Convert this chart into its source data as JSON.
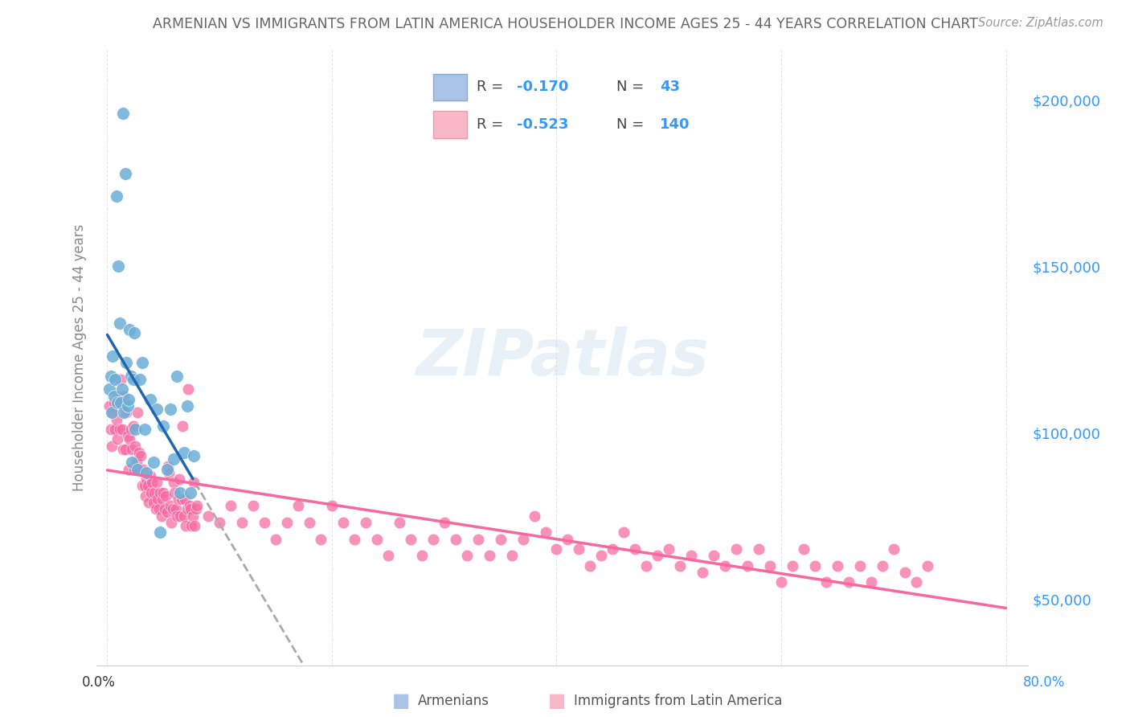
{
  "title": "ARMENIAN VS IMMIGRANTS FROM LATIN AMERICA HOUSEHOLDER INCOME AGES 25 - 44 YEARS CORRELATION CHART",
  "source": "Source: ZipAtlas.com",
  "ylabel": "Householder Income Ages 25 - 44 years",
  "y_ticks": [
    50000,
    100000,
    150000,
    200000
  ],
  "y_tick_labels": [
    "$50,000",
    "$100,000",
    "$150,000",
    "$200,000"
  ],
  "armenian_color": "#6baed6",
  "latin_color": "#f768a1",
  "blue_line_color": "#2166ac",
  "pink_line_color": "#f768a1",
  "dashed_line_color": "#aaaaaa",
  "legend_blue_swatch": "#aac4e8",
  "legend_pink_swatch": "#f9b8c8",
  "legend_text_dark": "#444444",
  "legend_text_blue": "#3399ff",
  "watermark": "ZIPatlas",
  "background_color": "#ffffff",
  "grid_color": "#cccccc",
  "title_color": "#666666",
  "r_armenian": "-0.170",
  "n_armenian": "43",
  "r_latin": "-0.523",
  "n_latin": "140",
  "armenian_scatter_x": [
    0.002,
    0.003,
    0.004,
    0.005,
    0.006,
    0.007,
    0.008,
    0.009,
    0.01,
    0.011,
    0.012,
    0.013,
    0.014,
    0.015,
    0.016,
    0.017,
    0.018,
    0.019,
    0.02,
    0.021,
    0.022,
    0.023,
    0.024,
    0.025,
    0.027,
    0.029,
    0.031,
    0.033,
    0.035,
    0.038,
    0.041,
    0.044,
    0.047,
    0.05,
    0.053,
    0.056,
    0.059,
    0.062,
    0.065,
    0.068,
    0.071,
    0.074,
    0.077
  ],
  "armenian_scatter_y": [
    113000,
    117000,
    106000,
    123000,
    111000,
    116000,
    171000,
    109000,
    150000,
    133000,
    109000,
    113000,
    196000,
    106000,
    178000,
    121000,
    108000,
    110000,
    131000,
    117000,
    91000,
    116000,
    130000,
    101000,
    89000,
    116000,
    121000,
    101000,
    88000,
    110000,
    91000,
    107000,
    70000,
    102000,
    89000,
    107000,
    92000,
    117000,
    82000,
    94000,
    108000,
    82000,
    93000
  ],
  "latin_scatter_x": [
    0.002,
    0.003,
    0.004,
    0.005,
    0.006,
    0.007,
    0.008,
    0.009,
    0.01,
    0.011,
    0.012,
    0.013,
    0.014,
    0.015,
    0.016,
    0.017,
    0.018,
    0.019,
    0.02,
    0.021,
    0.022,
    0.023,
    0.024,
    0.025,
    0.026,
    0.027,
    0.028,
    0.029,
    0.03,
    0.031,
    0.032,
    0.033,
    0.034,
    0.035,
    0.036,
    0.037,
    0.038,
    0.039,
    0.04,
    0.041,
    0.042,
    0.043,
    0.044,
    0.045,
    0.046,
    0.047,
    0.048,
    0.049,
    0.05,
    0.051,
    0.052,
    0.053,
    0.054,
    0.055,
    0.056,
    0.057,
    0.058,
    0.059,
    0.06,
    0.061,
    0.062,
    0.063,
    0.064,
    0.065,
    0.066,
    0.067,
    0.068,
    0.069,
    0.07,
    0.071,
    0.072,
    0.073,
    0.074,
    0.075,
    0.076,
    0.077,
    0.078,
    0.079,
    0.08,
    0.09,
    0.1,
    0.11,
    0.12,
    0.13,
    0.14,
    0.15,
    0.16,
    0.17,
    0.18,
    0.19,
    0.2,
    0.21,
    0.22,
    0.23,
    0.24,
    0.25,
    0.26,
    0.27,
    0.28,
    0.29,
    0.3,
    0.31,
    0.32,
    0.33,
    0.34,
    0.35,
    0.36,
    0.37,
    0.38,
    0.39,
    0.4,
    0.41,
    0.42,
    0.43,
    0.44,
    0.45,
    0.46,
    0.47,
    0.48,
    0.49,
    0.5,
    0.51,
    0.52,
    0.53,
    0.54,
    0.55,
    0.56,
    0.57,
    0.58,
    0.59,
    0.6,
    0.61,
    0.62,
    0.63,
    0.64,
    0.65,
    0.66,
    0.67,
    0.68,
    0.69,
    0.7,
    0.71,
    0.72,
    0.73
  ],
  "latin_scatter_y": [
    108000,
    101000,
    96000,
    106000,
    109000,
    101000,
    104000,
    98000,
    111000,
    101000,
    116000,
    101000,
    95000,
    111000,
    95000,
    106000,
    99000,
    89000,
    98000,
    101000,
    95000,
    102000,
    89000,
    96000,
    91000,
    106000,
    94000,
    89000,
    93000,
    84000,
    89000,
    84000,
    81000,
    86000,
    84000,
    79000,
    87000,
    82000,
    85000,
    79000,
    82000,
    77000,
    85000,
    80000,
    77000,
    82000,
    75000,
    80000,
    82000,
    77000,
    81000,
    76000,
    90000,
    88000,
    78000,
    73000,
    77000,
    85000,
    82000,
    77000,
    75000,
    80000,
    86000,
    75000,
    80000,
    102000,
    75000,
    80000,
    72000,
    77000,
    113000,
    78000,
    77000,
    72000,
    75000,
    85000,
    72000,
    77000,
    78000,
    75000,
    73000,
    78000,
    73000,
    78000,
    73000,
    68000,
    73000,
    78000,
    73000,
    68000,
    78000,
    73000,
    68000,
    73000,
    68000,
    63000,
    73000,
    68000,
    63000,
    68000,
    73000,
    68000,
    63000,
    68000,
    63000,
    68000,
    63000,
    68000,
    75000,
    70000,
    65000,
    68000,
    65000,
    60000,
    63000,
    65000,
    70000,
    65000,
    60000,
    63000,
    65000,
    60000,
    63000,
    58000,
    63000,
    60000,
    65000,
    60000,
    65000,
    60000,
    55000,
    60000,
    65000,
    60000,
    55000,
    60000,
    55000,
    60000,
    55000,
    60000,
    65000,
    58000,
    55000,
    60000
  ],
  "xlim": [
    -0.01,
    0.82
  ],
  "ylim": [
    30000,
    215000
  ],
  "xtick_positions": [
    0.0,
    0.2,
    0.4,
    0.6,
    0.8
  ]
}
